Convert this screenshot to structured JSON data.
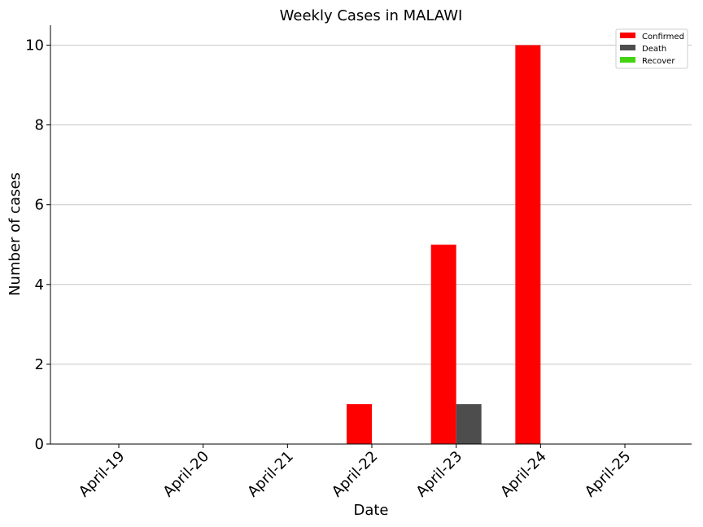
{
  "chart_data": {
    "type": "bar",
    "title": "Weekly Cases in MALAWI",
    "xlabel": "Date",
    "ylabel": "Number of cases",
    "categories": [
      "April-19",
      "April-20",
      "April-21",
      "April-22",
      "April-23",
      "April-24",
      "April-25"
    ],
    "series": [
      {
        "name": "Confirmed",
        "color": "#ff0000",
        "values": [
          0,
          0,
          0,
          1,
          5,
          10,
          0
        ]
      },
      {
        "name": "Death",
        "color": "#4d4d4d",
        "values": [
          0,
          0,
          0,
          0,
          1,
          0,
          0
        ]
      },
      {
        "name": "Recover",
        "color": "#44d313",
        "values": [
          0,
          0,
          0,
          0,
          0,
          0,
          0
        ]
      }
    ],
    "ylim": [
      0,
      10.5
    ],
    "yticks": [
      0,
      2,
      4,
      6,
      8,
      10
    ],
    "grid": "horizontal",
    "legend": "top-right"
  }
}
